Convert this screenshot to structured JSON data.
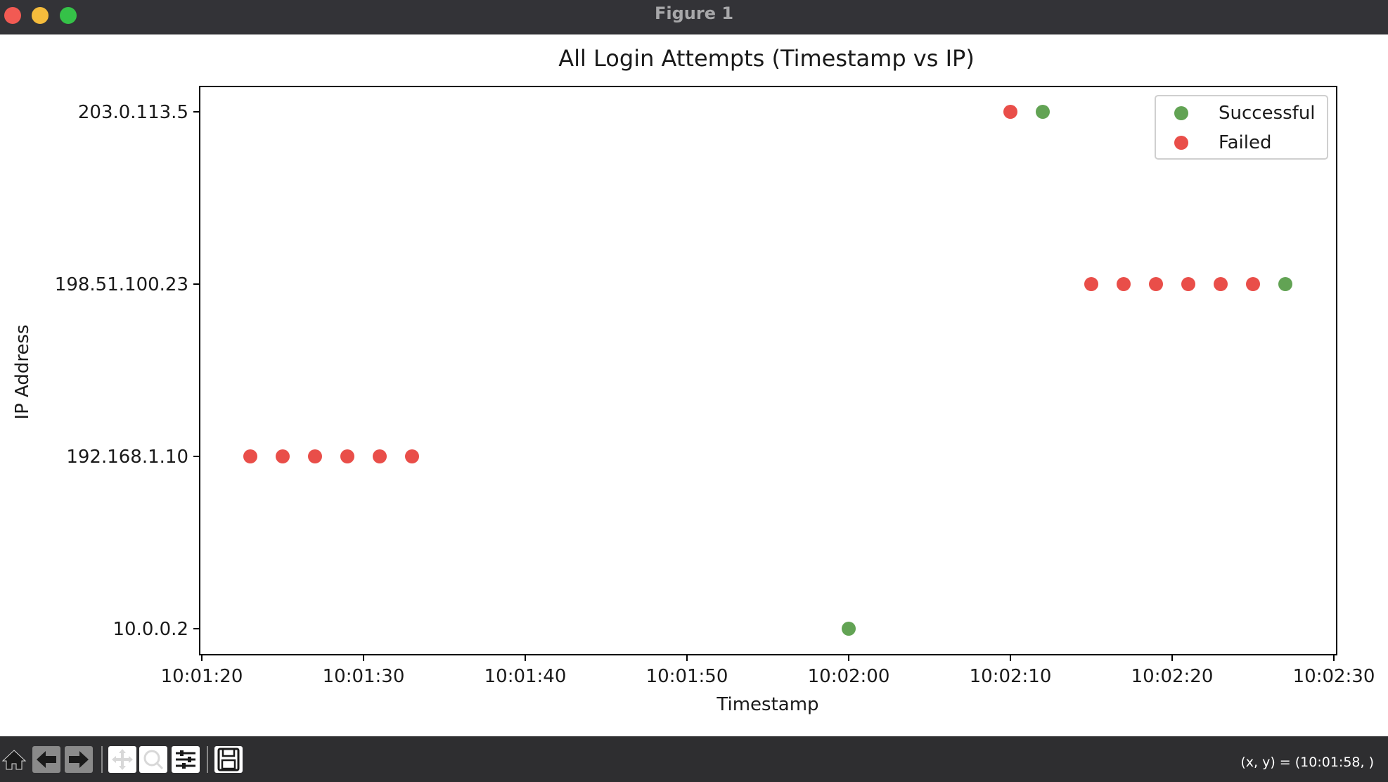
{
  "window": {
    "title": "Figure 1"
  },
  "toolbar": {
    "buttons": [
      "home-icon",
      "back-arrow-icon",
      "forward-arrow-icon",
      "pan-icon",
      "zoom-icon",
      "configure-subplots-icon",
      "save-icon"
    ],
    "coords": "(x, y) = (10:01:58, )"
  },
  "colors": {
    "successful": "#5a9e4b",
    "failed": "#e8443f"
  },
  "chart_data": {
    "type": "scatter",
    "title": "All Login Attempts (Timestamp vs IP)",
    "xlabel": "Timestamp",
    "ylabel": "IP Address",
    "x_ticks": [
      "10:01:20",
      "10:01:30",
      "10:01:40",
      "10:01:50",
      "10:02:00",
      "10:02:10",
      "10:02:20",
      "10:02:30"
    ],
    "y_categories": [
      "10.0.0.2",
      "192.168.1.10",
      "198.51.100.23",
      "203.0.113.5"
    ],
    "xlim": [
      "10:01:20",
      "10:02:30"
    ],
    "grid": false,
    "legend_position": "top-right",
    "series": [
      {
        "name": "Successful",
        "points": [
          {
            "x": "10:02:12",
            "y": "203.0.113.5"
          },
          {
            "x": "10:02:27",
            "y": "198.51.100.23"
          },
          {
            "x": "10:02:00",
            "y": "10.0.0.2"
          }
        ]
      },
      {
        "name": "Failed",
        "points": [
          {
            "x": "10:01:23",
            "y": "192.168.1.10"
          },
          {
            "x": "10:01:25",
            "y": "192.168.1.10"
          },
          {
            "x": "10:01:27",
            "y": "192.168.1.10"
          },
          {
            "x": "10:01:29",
            "y": "192.168.1.10"
          },
          {
            "x": "10:01:31",
            "y": "192.168.1.10"
          },
          {
            "x": "10:01:33",
            "y": "192.168.1.10"
          },
          {
            "x": "10:02:10",
            "y": "203.0.113.5"
          },
          {
            "x": "10:02:15",
            "y": "198.51.100.23"
          },
          {
            "x": "10:02:17",
            "y": "198.51.100.23"
          },
          {
            "x": "10:02:19",
            "y": "198.51.100.23"
          },
          {
            "x": "10:02:21",
            "y": "198.51.100.23"
          },
          {
            "x": "10:02:23",
            "y": "198.51.100.23"
          },
          {
            "x": "10:02:25",
            "y": "198.51.100.23"
          }
        ]
      }
    ]
  }
}
